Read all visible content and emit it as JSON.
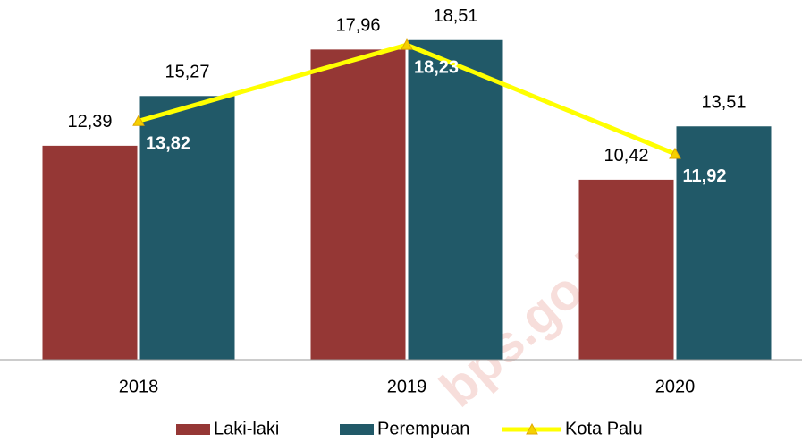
{
  "chart_data": {
    "type": "bar",
    "categories": [
      "2018",
      "2019",
      "2020"
    ],
    "series": [
      {
        "name": "Laki-laki",
        "color": "#953735",
        "values": [
          12.39,
          17.96,
          10.42
        ],
        "value_labels": [
          "12,39",
          "17,96",
          "10,42"
        ]
      },
      {
        "name": "Perempuan",
        "color": "#215968",
        "values": [
          15.27,
          18.51,
          13.51
        ],
        "value_labels": [
          "15,27",
          "18,51",
          "13,51"
        ]
      },
      {
        "name": "Kota Palu",
        "type": "line",
        "color": "#ffff00",
        "values": [
          13.82,
          18.23,
          11.92
        ],
        "value_labels": [
          "13,82",
          "18,23",
          "11,92"
        ]
      }
    ],
    "ylim": [
      0,
      20
    ],
    "legend": "bottom"
  },
  "watermark": "bps.go.id"
}
